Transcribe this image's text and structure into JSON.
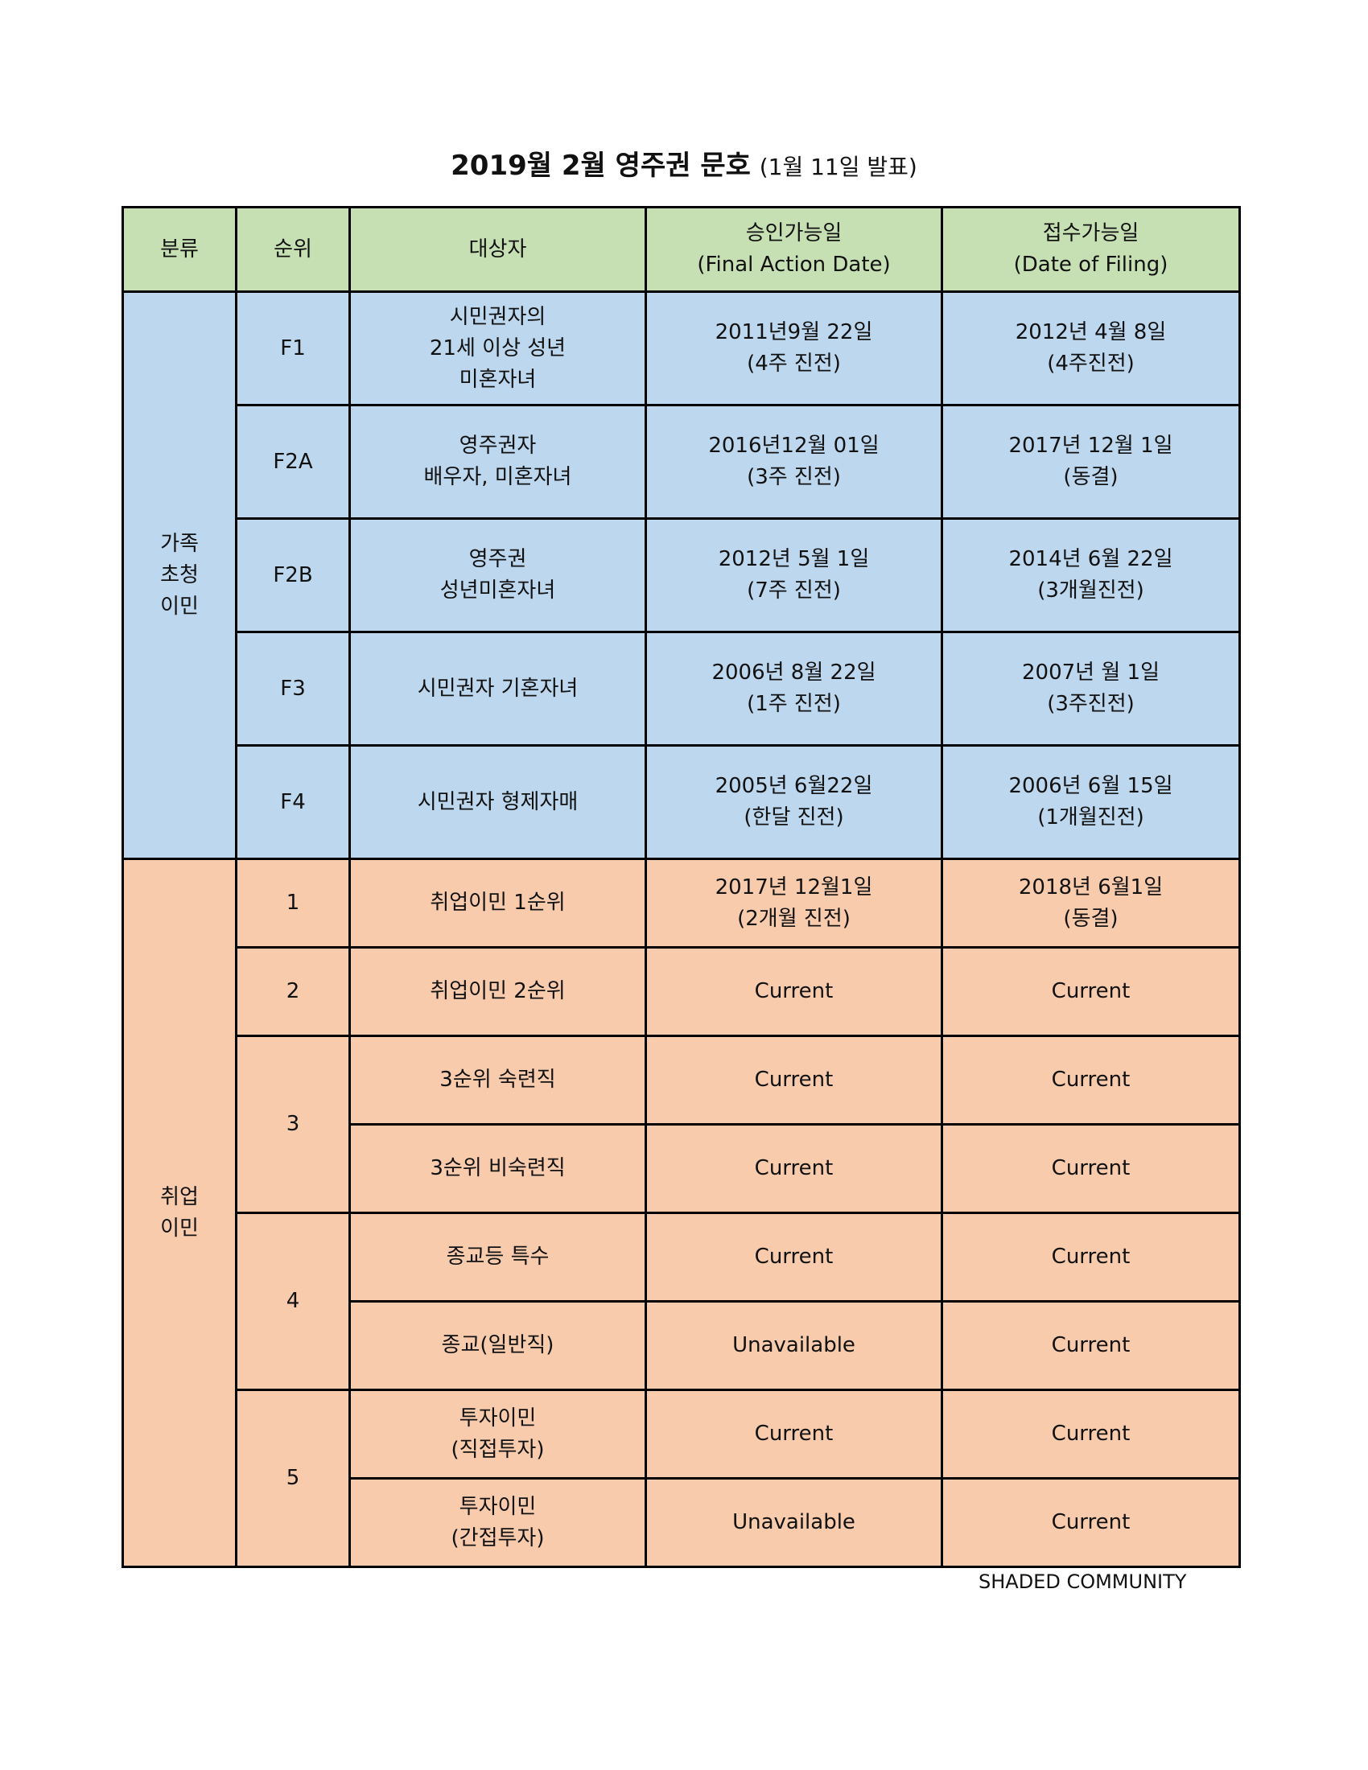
{
  "title": {
    "main": "2019월 2월 영주권 문호",
    "sub": "(1월 11일 발표)"
  },
  "colors": {
    "header": "#c6e0b4",
    "family": "#bdd7ee",
    "employment": "#f8cbad"
  },
  "header": {
    "category": "분류",
    "rank": "순위",
    "target": "대상자",
    "final_action": [
      "승인가능일",
      "(Final Action Date)"
    ],
    "filing": [
      "접수가능일",
      "(Date of Filing)"
    ]
  },
  "family": {
    "category": [
      "가족",
      "초청",
      "이민"
    ],
    "rows": [
      {
        "rank": "F1",
        "target": [
          "시민권자의",
          "21세 이상 성년",
          "미혼자녀"
        ],
        "final_action": [
          "2011년9월 22일",
          "(4주 진전)"
        ],
        "filing": [
          "2012년 4월 8일",
          "(4주진전)"
        ]
      },
      {
        "rank": "F2A",
        "target": [
          "영주권자",
          "배우자, 미혼자녀"
        ],
        "final_action": [
          "2016년12월 01일",
          "(3주 진전)"
        ],
        "filing": [
          "2017년 12월 1일",
          "(동결)"
        ]
      },
      {
        "rank": "F2B",
        "target": [
          "영주권",
          "성년미혼자녀"
        ],
        "final_action": [
          "2012년 5월 1일",
          "(7주 진전)"
        ],
        "filing": [
          "2014년 6월 22일",
          "(3개월진전)"
        ]
      },
      {
        "rank": "F3",
        "target": [
          "시민권자 기혼자녀"
        ],
        "final_action": [
          "2006년 8월 22일",
          "(1주 진전)"
        ],
        "filing": [
          "2007년 월 1일",
          "(3주진전)"
        ]
      },
      {
        "rank": "F4",
        "target": [
          "시민권자 형제자매"
        ],
        "final_action": [
          "2005년 6월22일",
          "(한달 진전)"
        ],
        "filing": [
          "2006년 6월 15일",
          "(1개월진전)"
        ]
      }
    ]
  },
  "employment": {
    "category": [
      "취업",
      "이민"
    ],
    "ranks": [
      "1",
      "2",
      "3",
      "4",
      "5"
    ],
    "rows": [
      {
        "target": [
          "취업이민 1순위"
        ],
        "final_action": [
          "2017년 12월1일",
          "(2개월 진전)"
        ],
        "filing": [
          "2018년 6월1일",
          "(동결)"
        ]
      },
      {
        "target": [
          "취업이민 2순위"
        ],
        "final_action": [
          "Current"
        ],
        "filing": [
          "Current"
        ]
      },
      {
        "target": [
          "3순위 숙련직"
        ],
        "final_action": [
          "Current"
        ],
        "filing": [
          "Current"
        ]
      },
      {
        "target": [
          "3순위 비숙련직"
        ],
        "final_action": [
          "Current"
        ],
        "filing": [
          "Current"
        ]
      },
      {
        "target": [
          "종교등 특수"
        ],
        "final_action": [
          "Current"
        ],
        "filing": [
          "Current"
        ]
      },
      {
        "target": [
          "종교(일반직)"
        ],
        "final_action": [
          "Unavailable"
        ],
        "filing": [
          "Current"
        ]
      },
      {
        "target": [
          "투자이민",
          "(직접투자)"
        ],
        "final_action": [
          "Current"
        ],
        "filing": [
          "Current"
        ]
      },
      {
        "target": [
          "투자이민",
          "(간접투자)"
        ],
        "final_action": [
          "Unavailable"
        ],
        "filing": [
          "Current"
        ]
      }
    ]
  },
  "footer": "SHADED COMMUNITY"
}
